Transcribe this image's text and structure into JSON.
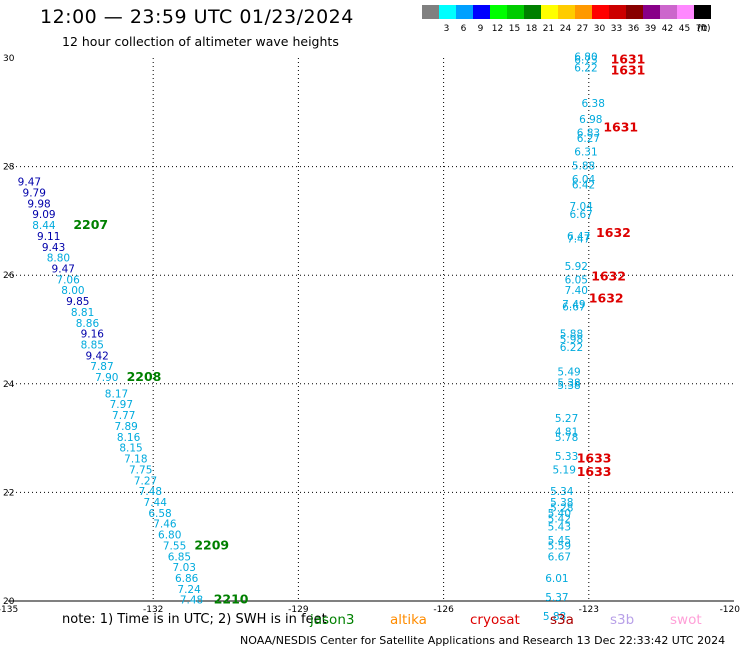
{
  "header": {
    "title": "12:00 — 23:59 UTC 01/23/2024",
    "subtitle": "12 hour collection of altimeter wave heights"
  },
  "footer": {
    "note": "note:  1) Time is in UTC; 2) SWH is in feet",
    "credit": "NOAA/NESDIS Center for Satellite Applications and Research    13 Dec 22:33:42 UTC 2024"
  },
  "satellites": [
    {
      "name": "jason3",
      "color": "#008000"
    },
    {
      "name": "altika",
      "color": "#ff8c00"
    },
    {
      "name": "cryosat",
      "color": "#dd0000"
    },
    {
      "name": "s3a",
      "color": "#aa0000"
    },
    {
      "name": "s3b",
      "color": "#b8a0e8"
    },
    {
      "name": "swot",
      "color": "#ffa0d8"
    }
  ],
  "colorbar": {
    "unit": "(ft)",
    "bins": [
      {
        "label": "",
        "color": "#808080"
      },
      {
        "label": "3",
        "color": "#00ffff"
      },
      {
        "label": "6",
        "color": "#00a0ff"
      },
      {
        "label": "9",
        "color": "#0000ff"
      },
      {
        "label": "12",
        "color": "#00ff00"
      },
      {
        "label": "15",
        "color": "#00cc00"
      },
      {
        "label": "18",
        "color": "#008000"
      },
      {
        "label": "21",
        "color": "#ffff00"
      },
      {
        "label": "24",
        "color": "#ffcc00"
      },
      {
        "label": "27",
        "color": "#ff9900"
      },
      {
        "label": "30",
        "color": "#ff0000"
      },
      {
        "label": "33",
        "color": "#cc0000"
      },
      {
        "label": "36",
        "color": "#880000"
      },
      {
        "label": "39",
        "color": "#880088"
      },
      {
        "label": "42",
        "color": "#cc66cc"
      },
      {
        "label": "45",
        "color": "#ff88ff"
      },
      {
        "label": "70",
        "color": "#000000"
      }
    ]
  },
  "chart_data": {
    "type": "scatter",
    "title": "12:00 — 23:59 UTC 01/23/2024",
    "subtitle": "12 hour collection of altimeter wave heights",
    "xlim": [
      -135,
      -120
    ],
    "ylim": [
      20,
      30
    ],
    "x_ticks": [
      "-135",
      "-132",
      "-129",
      "-126",
      "-123",
      "-120"
    ],
    "y_ticks": [
      "20",
      "22",
      "24",
      "26",
      "28",
      "30"
    ],
    "grid": true,
    "series": [
      {
        "name": "jason3",
        "points": [
          {
            "lon": -134.8,
            "lat": 27.65,
            "swh": "9.47",
            "color": "#0000aa"
          },
          {
            "lon": -134.7,
            "lat": 27.45,
            "swh": "9.79",
            "color": "#0000aa"
          },
          {
            "lon": -134.6,
            "lat": 27.25,
            "swh": "9.98",
            "color": "#0000aa"
          },
          {
            "lon": -134.5,
            "lat": 27.05,
            "swh": "9.09",
            "color": "#0000aa"
          },
          {
            "lon": -134.5,
            "lat": 26.85,
            "swh": "8.44",
            "color": "#00aadd"
          },
          {
            "lon": -134.4,
            "lat": 26.65,
            "swh": "9.11",
            "color": "#0000aa"
          },
          {
            "lon": -134.3,
            "lat": 26.45,
            "swh": "9.43",
            "color": "#0000aa"
          },
          {
            "lon": -134.2,
            "lat": 26.25,
            "swh": "8.80",
            "color": "#00aadd"
          },
          {
            "lon": -134.1,
            "lat": 26.05,
            "swh": "9.47",
            "color": "#0000aa"
          },
          {
            "lon": -134.0,
            "lat": 25.85,
            "swh": "7.06",
            "color": "#00aadd"
          },
          {
            "lon": -133.9,
            "lat": 25.65,
            "swh": "8.00",
            "color": "#00aadd"
          },
          {
            "lon": -133.8,
            "lat": 25.45,
            "swh": "9.85",
            "color": "#0000aa"
          },
          {
            "lon": -133.7,
            "lat": 25.25,
            "swh": "8.81",
            "color": "#00aadd"
          },
          {
            "lon": -133.6,
            "lat": 25.05,
            "swh": "8.86",
            "color": "#00aadd"
          },
          {
            "lon": -133.5,
            "lat": 24.85,
            "swh": "9.16",
            "color": "#0000aa"
          },
          {
            "lon": -133.5,
            "lat": 24.65,
            "swh": "8.85",
            "color": "#00aadd"
          },
          {
            "lon": -133.4,
            "lat": 24.45,
            "swh": "9.42",
            "color": "#0000aa"
          },
          {
            "lon": -133.3,
            "lat": 24.25,
            "swh": "7.87",
            "color": "#00aadd"
          },
          {
            "lon": -133.2,
            "lat": 24.05,
            "swh": "7.90",
            "color": "#00aadd"
          },
          {
            "lon": -133.0,
            "lat": 23.75,
            "swh": "8.17",
            "color": "#00aadd"
          },
          {
            "lon": -132.9,
            "lat": 23.55,
            "swh": "7.97",
            "color": "#00aadd"
          },
          {
            "lon": -132.85,
            "lat": 23.35,
            "swh": "7.77",
            "color": "#00aadd"
          },
          {
            "lon": -132.8,
            "lat": 23.15,
            "swh": "7.89",
            "color": "#00aadd"
          },
          {
            "lon": -132.75,
            "lat": 22.95,
            "swh": "8.16",
            "color": "#00aadd"
          },
          {
            "lon": -132.7,
            "lat": 22.75,
            "swh": "8.15",
            "color": "#00aadd"
          },
          {
            "lon": -132.6,
            "lat": 22.55,
            "swh": "7.18",
            "color": "#00aadd"
          },
          {
            "lon": -132.5,
            "lat": 22.35,
            "swh": "7.75",
            "color": "#00aadd"
          },
          {
            "lon": -132.4,
            "lat": 22.15,
            "swh": "7.27",
            "color": "#00aadd"
          },
          {
            "lon": -132.3,
            "lat": 21.95,
            "swh": "7.48",
            "color": "#00aadd"
          },
          {
            "lon": -132.2,
            "lat": 21.75,
            "swh": "7.44",
            "color": "#00aadd"
          },
          {
            "lon": -132.1,
            "lat": 21.55,
            "swh": "6.58",
            "color": "#00aadd"
          },
          {
            "lon": -132.0,
            "lat": 21.35,
            "swh": "7.46",
            "color": "#00aadd"
          },
          {
            "lon": -131.9,
            "lat": 21.15,
            "swh": "6.80",
            "color": "#00aadd"
          },
          {
            "lon": -131.8,
            "lat": 20.95,
            "swh": "7.55",
            "color": "#00aadd"
          },
          {
            "lon": -131.7,
            "lat": 20.75,
            "swh": "6.85",
            "color": "#00aadd"
          },
          {
            "lon": -131.6,
            "lat": 20.55,
            "swh": "7.03",
            "color": "#00aadd"
          },
          {
            "lon": -131.55,
            "lat": 20.35,
            "swh": "6.86",
            "color": "#00aadd"
          },
          {
            "lon": -131.5,
            "lat": 20.15,
            "swh": "7.24",
            "color": "#00aadd"
          },
          {
            "lon": -131.45,
            "lat": 19.95,
            "swh": "7.48",
            "color": "#00aadd"
          }
        ],
        "time_labels": [
          {
            "lon": -133.65,
            "lat": 26.85,
            "text": "2207"
          },
          {
            "lon": -132.55,
            "lat": 24.05,
            "text": "2208"
          },
          {
            "lon": -131.15,
            "lat": 20.95,
            "text": "2209"
          },
          {
            "lon": -130.75,
            "lat": 19.95,
            "text": "2210"
          }
        ]
      },
      {
        "name": "cryosat",
        "points": [
          {
            "lon": -123.3,
            "lat": 29.95,
            "swh": "6.80",
            "color": "#00aadd"
          },
          {
            "lon": -123.3,
            "lat": 29.9,
            "swh": "6.73",
            "color": "#00aadd"
          },
          {
            "lon": -123.3,
            "lat": 29.75,
            "swh": "6.22",
            "color": "#00aadd"
          },
          {
            "lon": -123.15,
            "lat": 29.1,
            "swh": "6.38",
            "color": "#00aadd"
          },
          {
            "lon": -123.2,
            "lat": 28.8,
            "swh": "6.98",
            "color": "#00aadd"
          },
          {
            "lon": -123.25,
            "lat": 28.55,
            "swh": "6.83",
            "color": "#00aadd"
          },
          {
            "lon": -123.25,
            "lat": 28.45,
            "swh": "6.27",
            "color": "#00aadd"
          },
          {
            "lon": -123.3,
            "lat": 28.2,
            "swh": "6.31",
            "color": "#00aadd"
          },
          {
            "lon": -123.35,
            "lat": 27.95,
            "swh": "5.88",
            "color": "#00aadd"
          },
          {
            "lon": -123.35,
            "lat": 27.7,
            "swh": "6.04",
            "color": "#00aadd"
          },
          {
            "lon": -123.35,
            "lat": 27.6,
            "swh": "6.42",
            "color": "#00aadd"
          },
          {
            "lon": -123.4,
            "lat": 27.2,
            "swh": "7.04",
            "color": "#00aadd"
          },
          {
            "lon": -123.4,
            "lat": 27.05,
            "swh": "6.67",
            "color": "#00aadd"
          },
          {
            "lon": -123.45,
            "lat": 26.65,
            "swh": "6.47",
            "color": "#00aadd"
          },
          {
            "lon": -123.45,
            "lat": 26.6,
            "swh": "7.47",
            "color": "#00aadd"
          },
          {
            "lon": -123.5,
            "lat": 26.1,
            "swh": "5.92",
            "color": "#00aadd"
          },
          {
            "lon": -123.5,
            "lat": 25.85,
            "swh": "6.05",
            "color": "#00aadd"
          },
          {
            "lon": -123.5,
            "lat": 25.65,
            "swh": "7.40",
            "color": "#00aadd"
          },
          {
            "lon": -123.55,
            "lat": 25.4,
            "swh": "7.49",
            "color": "#00aadd"
          },
          {
            "lon": -123.55,
            "lat": 25.35,
            "swh": "6.67",
            "color": "#00aadd"
          },
          {
            "lon": -123.6,
            "lat": 24.85,
            "swh": "5.88",
            "color": "#00aadd"
          },
          {
            "lon": -123.6,
            "lat": 24.75,
            "swh": "5.98",
            "color": "#00aadd"
          },
          {
            "lon": -123.6,
            "lat": 24.6,
            "swh": "6.22",
            "color": "#00aadd"
          },
          {
            "lon": -123.65,
            "lat": 24.15,
            "swh": "5.49",
            "color": "#00aadd"
          },
          {
            "lon": -123.65,
            "lat": 23.95,
            "swh": "5.38",
            "color": "#00aadd"
          },
          {
            "lon": -123.65,
            "lat": 23.9,
            "swh": "5.38",
            "color": "#00aadd"
          },
          {
            "lon": -123.7,
            "lat": 23.3,
            "swh": "5.27",
            "color": "#00aadd"
          },
          {
            "lon": -123.7,
            "lat": 23.05,
            "swh": "4.81",
            "color": "#00aadd"
          },
          {
            "lon": -123.7,
            "lat": 22.95,
            "swh": "5.78",
            "color": "#00aadd"
          },
          {
            "lon": -123.7,
            "lat": 22.6,
            "swh": "5.33",
            "color": "#00aadd"
          },
          {
            "lon": -123.75,
            "lat": 22.35,
            "swh": "5.19",
            "color": "#00aadd"
          }
        ],
        "time_labels": [
          {
            "lon": -122.55,
            "lat": 29.9,
            "text": "1631"
          },
          {
            "lon": -122.55,
            "lat": 29.7,
            "text": "1631"
          },
          {
            "lon": -122.7,
            "lat": 28.65,
            "text": "1631"
          },
          {
            "lon": -122.85,
            "lat": 26.7,
            "text": "1632"
          },
          {
            "lon": -122.95,
            "lat": 25.9,
            "text": "1632"
          },
          {
            "lon": -123.0,
            "lat": 25.5,
            "text": "1632"
          },
          {
            "lon": -123.25,
            "lat": 22.55,
            "text": "1633"
          },
          {
            "lon": -123.25,
            "lat": 22.3,
            "text": "1633"
          }
        ]
      },
      {
        "name": "s3a",
        "points": [
          {
            "lon": -123.8,
            "lat": 21.95,
            "swh": "5.34",
            "color": "#00aadd"
          },
          {
            "lon": -123.8,
            "lat": 21.75,
            "swh": "5.38",
            "color": "#00aadd"
          },
          {
            "lon": -123.8,
            "lat": 21.65,
            "swh": "5.28",
            "color": "#00aadd"
          },
          {
            "lon": -123.85,
            "lat": 21.55,
            "swh": "5.40",
            "color": "#00aadd"
          },
          {
            "lon": -123.85,
            "lat": 21.45,
            "swh": "5.42",
            "color": "#00aadd"
          },
          {
            "lon": -123.85,
            "lat": 21.3,
            "swh": "5.43",
            "color": "#00aadd"
          },
          {
            "lon": -123.85,
            "lat": 21.05,
            "swh": "5.45",
            "color": "#00aadd"
          },
          {
            "lon": -123.85,
            "lat": 20.95,
            "swh": "5.59",
            "color": "#00aadd"
          },
          {
            "lon": -123.85,
            "lat": 20.75,
            "swh": "6.67",
            "color": "#00aadd"
          },
          {
            "lon": -123.9,
            "lat": 20.35,
            "swh": "6.01",
            "color": "#00aadd"
          },
          {
            "lon": -123.9,
            "lat": 20.0,
            "swh": "5.37",
            "color": "#00aadd"
          },
          {
            "lon": -123.95,
            "lat": 19.65,
            "swh": "5.88",
            "color": "#00aadd"
          }
        ],
        "time_labels": []
      }
    ]
  }
}
